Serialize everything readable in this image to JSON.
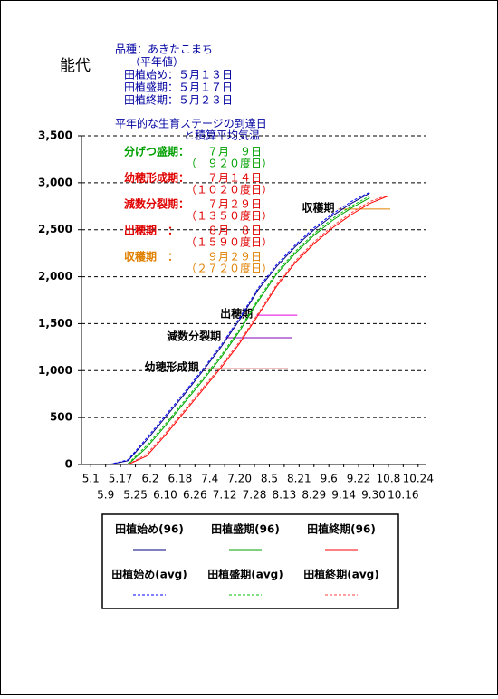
{
  "chart_data": {
    "type": "line",
    "title": "能代",
    "notes": [
      "品種：あきたこまち",
      "（平年値）",
      "田植始め：５月１３日",
      "田植盛期：５月１７日",
      "田植終期：５月２３日"
    ],
    "subtitle": [
      "平年的な生育ステージの到達日",
      "と積算平均気温"
    ],
    "stages": [
      {
        "name": "分げつ盛期：",
        "date": "７月　９日",
        "degree": "（　９２０度日）",
        "color": "#00a000"
      },
      {
        "name": "幼穂形成期：",
        "date": "７月１４日",
        "degree": "（１０２０度日）",
        "color": "#e00000"
      },
      {
        "name": "減数分裂期：",
        "date": "７月２９日",
        "degree": "（１３５０度日）",
        "color": "#e00000"
      },
      {
        "name": "出穂期　：",
        "date": "８月　８日",
        "degree": "（１５９０度日）",
        "color": "#e00000"
      },
      {
        "name": "収穫期　：",
        "date": "９月２９日",
        "degree": "（２７２０度日）",
        "color": "#e08000"
      }
    ],
    "stage_lines": [
      {
        "label": "幼穂形成期",
        "value": 1020,
        "x": [
          60,
          106
        ],
        "color": "#c00000"
      },
      {
        "label": "減数分裂期",
        "value": 1350,
        "x": [
          72,
          108
        ],
        "color": "#8000c0"
      },
      {
        "label": "出穂期",
        "value": 1590,
        "x": [
          89,
          111
        ],
        "color": "#e000e0"
      },
      {
        "label": "収穫期",
        "value": 2720,
        "x": [
          133,
          161
        ],
        "color": "#e08000"
      }
    ],
    "x": [
      10,
      20,
      30,
      40,
      50,
      60,
      70,
      80,
      90,
      100,
      110,
      120,
      130,
      140,
      150,
      160
    ],
    "series": [
      {
        "name": "田植始め(96)",
        "color": "#000080",
        "dash": false,
        "values": [
          0,
          40,
          260,
          500,
          740,
          990,
          1250,
          1540,
          1860,
          2110,
          2320,
          2500,
          2650,
          2780,
          2890,
          null
        ]
      },
      {
        "name": "田植盛期(96)",
        "color": "#00a000",
        "dash": false,
        "values": [
          null,
          0,
          180,
          410,
          650,
          890,
          1140,
          1420,
          1740,
          2030,
          2250,
          2440,
          2600,
          2730,
          2840,
          null
        ]
      },
      {
        "name": "田植終期(96)",
        "color": "#ff0000",
        "dash": false,
        "values": [
          null,
          0,
          90,
          310,
          550,
          790,
          1030,
          1290,
          1590,
          1900,
          2150,
          2350,
          2520,
          2660,
          2780,
          2860
        ]
      },
      {
        "name": "田植始め(avg)",
        "color": "#0000ff",
        "dash": true,
        "values": [
          0,
          50,
          280,
          520,
          760,
          1010,
          1270,
          1560,
          1880,
          2130,
          2340,
          2520,
          2670,
          2800,
          2900,
          null
        ]
      },
      {
        "name": "田植盛期(avg)",
        "color": "#00c000",
        "dash": true,
        "values": [
          null,
          10,
          200,
          430,
          670,
          910,
          1160,
          1440,
          1760,
          2050,
          2270,
          2460,
          2620,
          2750,
          2860,
          null
        ]
      },
      {
        "name": "田植終期(avg)",
        "color": "#ff4040",
        "dash": true,
        "values": [
          null,
          0,
          110,
          330,
          570,
          810,
          1050,
          1310,
          1610,
          1920,
          2170,
          2370,
          2540,
          2680,
          2800,
          2870
        ]
      }
    ],
    "xlim": [
      -5,
      180
    ],
    "xticks": [
      {
        "value": 0,
        "label": "5.1"
      },
      {
        "value": 8,
        "label": "5.9"
      },
      {
        "value": 16,
        "label": "5.17"
      },
      {
        "value": 24,
        "label": "5.25"
      },
      {
        "value": 32,
        "label": "6.2"
      },
      {
        "value": 40,
        "label": "6.10"
      },
      {
        "value": 48,
        "label": "6.18"
      },
      {
        "value": 56,
        "label": "6.26"
      },
      {
        "value": 64,
        "label": "7.4"
      },
      {
        "value": 72,
        "label": "7.12"
      },
      {
        "value": 80,
        "label": "7.20"
      },
      {
        "value": 88,
        "label": "7.28"
      },
      {
        "value": 96,
        "label": "8.5"
      },
      {
        "value": 104,
        "label": "8.13"
      },
      {
        "value": 112,
        "label": "8.21"
      },
      {
        "value": 120,
        "label": "8.29"
      },
      {
        "value": 128,
        "label": "9.6"
      },
      {
        "value": 136,
        "label": "9.14"
      },
      {
        "value": 144,
        "label": "9.22"
      },
      {
        "value": 152,
        "label": "9.30"
      },
      {
        "value": 160,
        "label": "10.8"
      },
      {
        "value": 168,
        "label": "10.16"
      },
      {
        "value": 176,
        "label": "10.24"
      }
    ],
    "ylim": [
      0,
      3500
    ],
    "yticks": [
      0,
      500,
      {
        "value": 1000,
        "label": "1,000"
      },
      {
        "value": 1500,
        "label": "1,500"
      },
      {
        "value": 2000,
        "label": "2,000"
      },
      {
        "value": 2500,
        "label": "2,500"
      },
      {
        "value": 3000,
        "label": "3,000"
      },
      {
        "value": 3500,
        "label": "3,500"
      }
    ],
    "grid": true
  }
}
